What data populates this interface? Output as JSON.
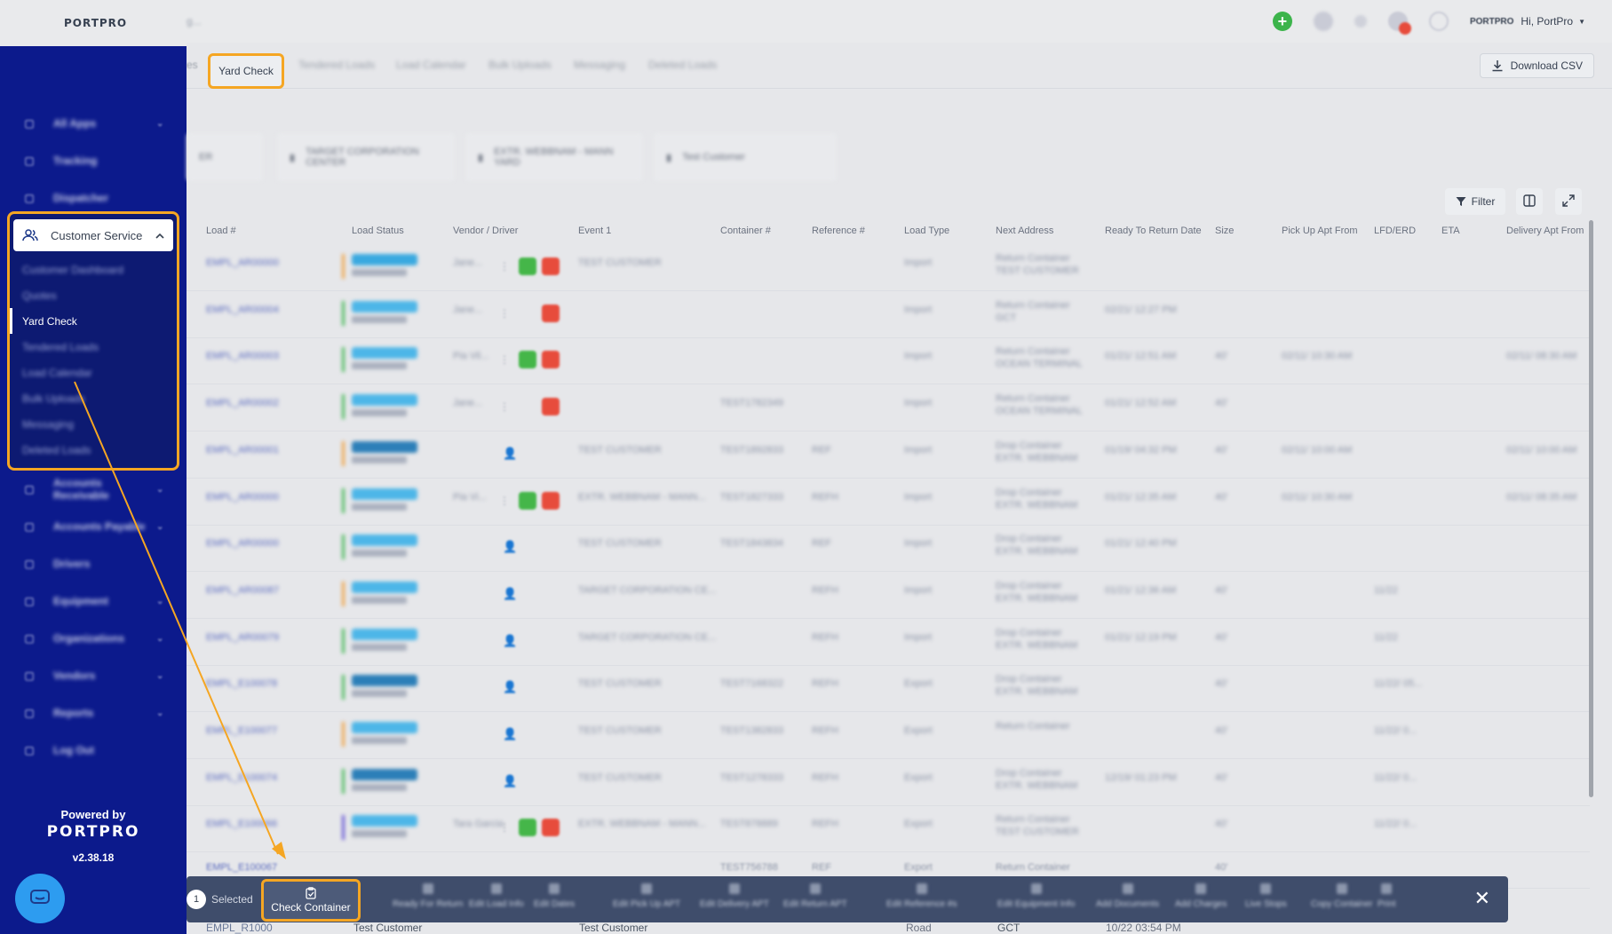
{
  "app": {
    "logo": "PORTPRO",
    "breadcrumb": "g..."
  },
  "topbar": {
    "greeting": "Hi, PortPro",
    "logo_small": "PORTPRO"
  },
  "sidebar": {
    "items_top": [
      {
        "label": "All Apps"
      },
      {
        "label": "Tracking"
      },
      {
        "label": "Dispatcher"
      }
    ],
    "customer_service": {
      "label": "Customer Service",
      "sub_items": [
        {
          "label": "Customer Dashboard"
        },
        {
          "label": "Quotes"
        },
        {
          "label": "Yard Check"
        },
        {
          "label": "Tendered Loads"
        },
        {
          "label": "Load Calendar"
        },
        {
          "label": "Bulk Uploads"
        },
        {
          "label": "Messaging"
        },
        {
          "label": "Deleted Loads"
        }
      ]
    },
    "items_bottom": [
      {
        "label": "Accounts Receivable"
      },
      {
        "label": "Accounts Payable"
      },
      {
        "label": "Drivers"
      },
      {
        "label": "Equipment"
      },
      {
        "label": "Organizations"
      },
      {
        "label": "Vendors"
      },
      {
        "label": "Reports"
      },
      {
        "label": "Log Out"
      }
    ],
    "powered_by": "Powered by",
    "brand": "PORTPRO",
    "version": "v2.38.18"
  },
  "tabs": {
    "left_partial": "es",
    "active": "Yard Check",
    "others": [
      "Tendered Loads",
      "Load Calendar",
      "Bulk Uploads",
      "Messaging",
      "Deleted Loads"
    ]
  },
  "download_csv": "Download CSV",
  "cards": [
    "ER",
    "TARGET CORPORATION CENTER",
    "EXTR. WEBBNAM - MANN YARD",
    "Test Customer"
  ],
  "table": {
    "filter_label": "Filter",
    "columns": [
      "Load #",
      "Load Status",
      "Vendor / Driver",
      "Event 1",
      "Container #",
      "Reference #",
      "Load Type",
      "Next Address",
      "Ready To Return Date",
      "Size",
      "Pick Up Apt From",
      "LFD/ERD",
      "ETA",
      "Delivery Apt From"
    ],
    "rows": [
      {
        "load": "EMPL_AR00000",
        "driver": "Jane...",
        "event": "TEST CUSTOMER",
        "container": "",
        "ref": "",
        "type": "Import",
        "next": "Return Container TEST CUSTOMER",
        "ready": "",
        "size": "",
        "pickup": "",
        "lfd": "",
        "delivery": ""
      },
      {
        "load": "EMPL_AR00004",
        "driver": "Jane...",
        "event": "",
        "container": "",
        "ref": "",
        "type": "Import",
        "next": "Return Container GCT",
        "ready": "02/21/ 12:27 PM",
        "size": "",
        "pickup": "",
        "lfd": "",
        "delivery": ""
      },
      {
        "load": "EMPL_AR00003",
        "driver": "Pia Vil...",
        "event": "",
        "container": "",
        "ref": "",
        "type": "Import",
        "next": "Return Container OCEAN TERMINAL",
        "ready": "01/21/ 12:51 AM",
        "size": "40'",
        "pickup": "02/11/ 10:30 AM",
        "lfd": "",
        "delivery": "02/11/ 08:30 AM"
      },
      {
        "load": "EMPL_AR00002",
        "driver": "Jane...",
        "event": "",
        "container": "TEST1782349",
        "ref": "",
        "type": "Import",
        "next": "Return Container OCEAN TERMINAL",
        "ready": "01/21/ 12:52 AM",
        "size": "40'",
        "pickup": "",
        "lfd": "",
        "delivery": ""
      },
      {
        "load": "EMPL_AR00001",
        "driver": "",
        "event": "TEST CUSTOMER",
        "container": "TEST1892833",
        "ref": "REF",
        "type": "Import",
        "next": "Drop Container EXTR. WEBBNAM",
        "ready": "01/19/ 04:32 PM",
        "size": "40'",
        "pickup": "02/11/ 10:00 AM",
        "lfd": "",
        "delivery": "02/11/ 10:00 AM"
      },
      {
        "load": "EMPL_AR00000",
        "driver": "Pia Vi...",
        "event": "EXTR. WEBBNAM - MANN...",
        "container": "TEST1827333",
        "ref": "REFH",
        "type": "Import",
        "next": "Drop Container EXTR. WEBBNAM",
        "ready": "01/21/ 12:35 AM",
        "size": "40'",
        "pickup": "02/11/ 10:30 AM",
        "lfd": "",
        "delivery": "02/11/ 08:35 AM"
      },
      {
        "load": "EMPL_AR00000",
        "driver": "",
        "event": "TEST CUSTOMER",
        "container": "TEST1843834",
        "ref": "REF",
        "type": "Import",
        "next": "Drop Container EXTR. WEBBNAM",
        "ready": "01/21/ 12:40 PM",
        "size": "",
        "pickup": "",
        "lfd": "",
        "delivery": ""
      },
      {
        "load": "EMPL_AR00087",
        "driver": "",
        "event": "TARGET CORPORATION CE...",
        "container": "",
        "ref": "REFH",
        "type": "Import",
        "next": "Drop Container EXTR. WEBBNAM",
        "ready": "01/21/ 12:36 AM",
        "size": "40'",
        "pickup": "",
        "lfd": "11/22",
        "delivery": ""
      },
      {
        "load": "EMPL_AR00079",
        "driver": "",
        "event": "TARGET CORPORATION CE...",
        "container": "",
        "ref": "REFH",
        "type": "Import",
        "next": "Drop Container EXTR. WEBBNAM",
        "ready": "01/21/ 12:19 PM",
        "size": "40'",
        "pickup": "",
        "lfd": "11/22",
        "delivery": ""
      },
      {
        "load": "EMPL_E100078",
        "driver": "",
        "event": "TEST CUSTOMER",
        "container": "TEST7168322",
        "ref": "REFH",
        "type": "Export",
        "next": "Drop Container EXTR. WEBBNAM",
        "ready": "",
        "size": "40'",
        "pickup": "",
        "lfd": "11/22/ 05...",
        "delivery": ""
      },
      {
        "load": "EMPL_E100077",
        "driver": "",
        "event": "TEST CUSTOMER",
        "container": "TEST1382833",
        "ref": "REFH",
        "type": "Export",
        "next": "Return Container",
        "ready": "",
        "size": "40'",
        "pickup": "",
        "lfd": "11/22/ 0...",
        "delivery": ""
      },
      {
        "load": "EMPL_E100074",
        "driver": "",
        "event": "TEST CUSTOMER",
        "container": "TEST1278333",
        "ref": "REFH",
        "type": "Export",
        "next": "Drop Container EXTR. WEBBNAM",
        "ready": "12/19/ 01:23 PM",
        "size": "40'",
        "pickup": "",
        "lfd": "11/22/ 0...",
        "delivery": ""
      },
      {
        "load": "EMPL_E100066",
        "driver": "Tara Garcia",
        "event": "EXTR. WEBBNAM - MANN...",
        "container": "TEST878889",
        "ref": "REFH",
        "type": "Export",
        "next": "Return Container TEST CUSTOMER",
        "ready": "",
        "size": "40'",
        "pickup": "",
        "lfd": "11/22/ 0...",
        "delivery": ""
      }
    ]
  },
  "partial_row": {
    "load": "EMPL_E100067",
    "container": "TEST756788",
    "ref": "REF",
    "type": "Export",
    "next": "Return Container",
    "size": "40'"
  },
  "under_row": {
    "load": "EMPL_R1000",
    "customer": "Test Customer",
    "event": "Test Customer",
    "type": "Road",
    "next": "GCT",
    "ready": "10/22 03:54 PM"
  },
  "actionbar": {
    "count": "1",
    "selected_label": "Selected",
    "check_container": "Check Container",
    "actions": [
      "Ready For Return",
      "Edit Load Info",
      "Edit Dates",
      "Edit Pick Up APT",
      "Edit Delivery APT",
      "Edit Return APT",
      "Edit Reference #s",
      "Edit Equipment Info",
      "Add Documents",
      "Add Charges",
      "Live Stops",
      "Copy Container",
      "Print"
    ]
  },
  "colors": {
    "sidebar": "#0c1a8c",
    "highlight": "#f5a623",
    "actionbar": "#3f4d6b"
  }
}
